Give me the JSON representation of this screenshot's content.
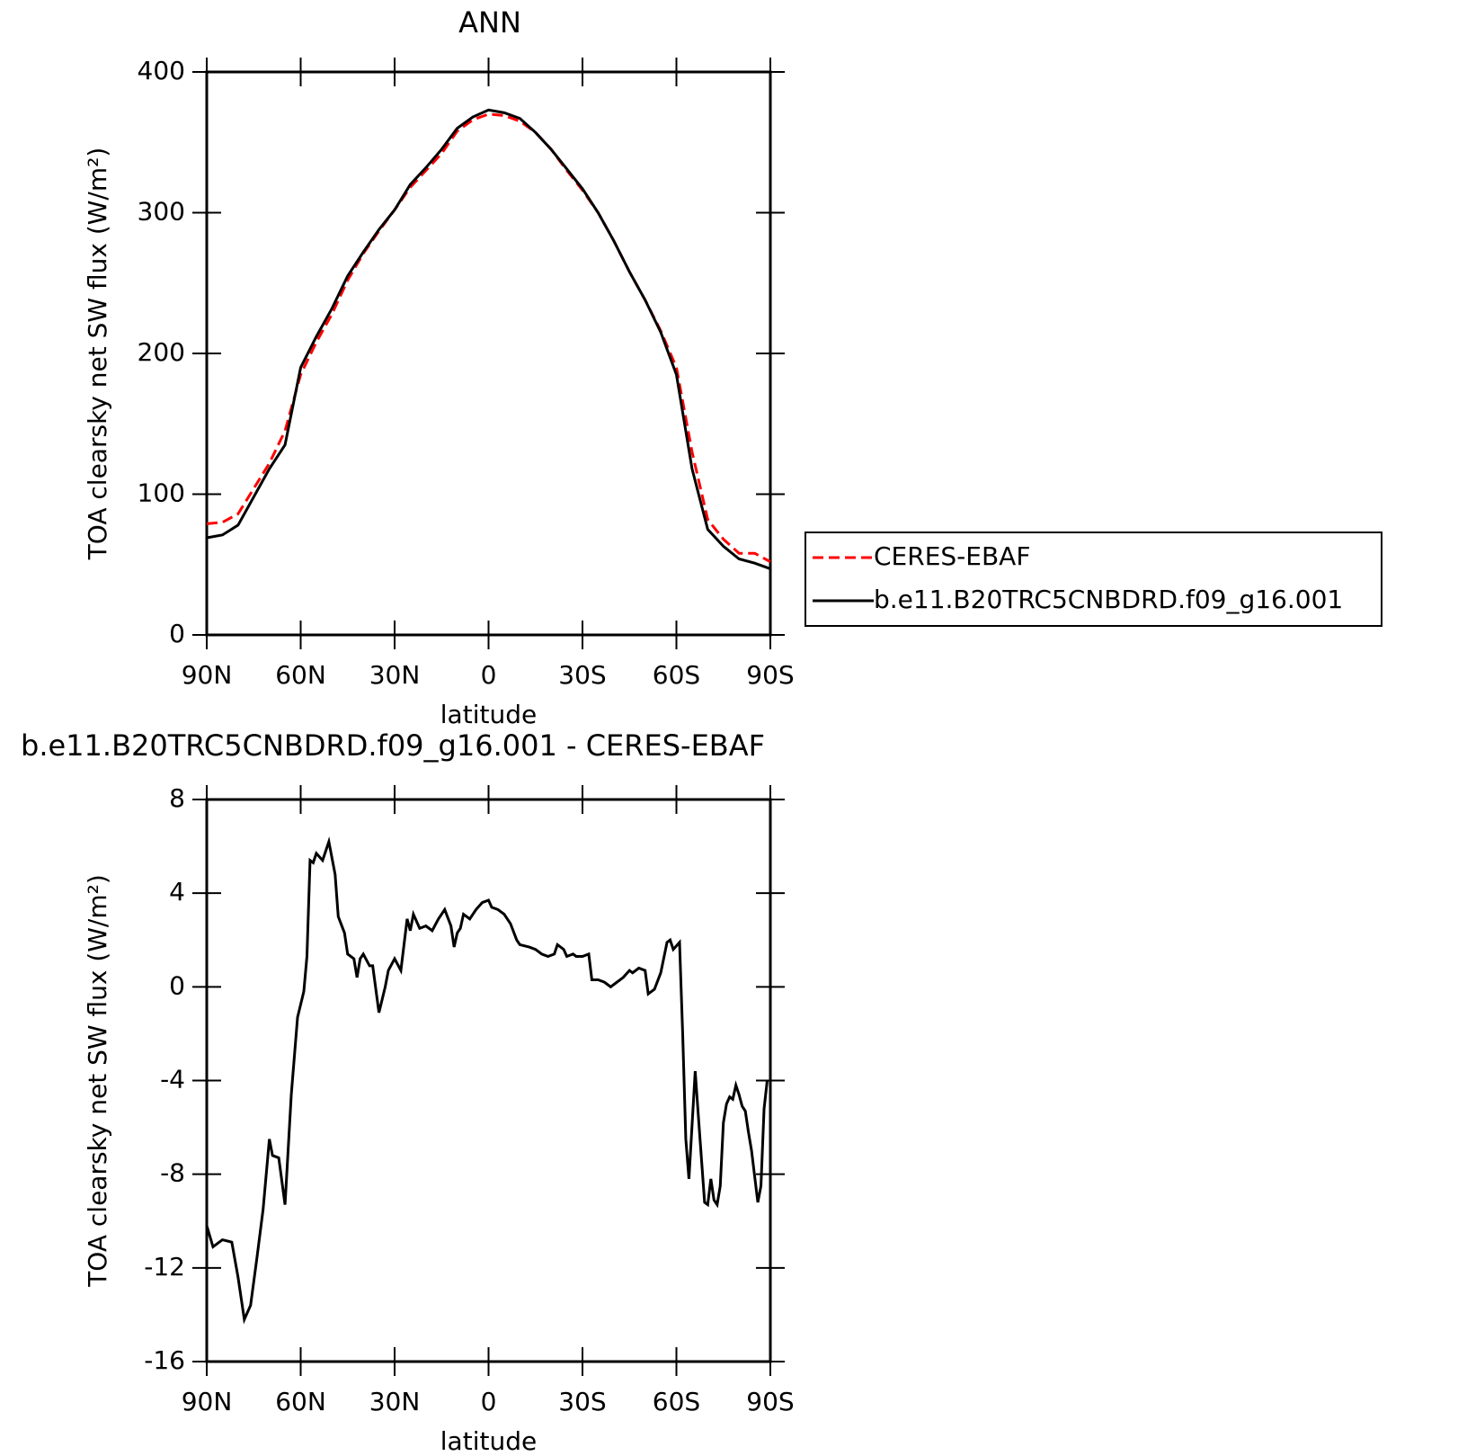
{
  "chart_data": [
    {
      "type": "line",
      "title": "ANN",
      "xlabel": "latitude",
      "ylabel": "TOA clearsky net SW flux (W/m²)",
      "x": [
        90,
        85,
        80,
        75,
        70,
        65,
        60,
        55,
        50,
        45,
        40,
        35,
        30,
        25,
        20,
        15,
        10,
        5,
        0,
        -5,
        -10,
        -15,
        -20,
        -25,
        -30,
        -35,
        -40,
        -45,
        -50,
        -55,
        -60,
        -65,
        -70,
        -75,
        -80,
        -85,
        -90
      ],
      "series": [
        {
          "name": "CERES-EBAF",
          "color": "#ff0000",
          "dash": true,
          "values": [
            79,
            80,
            86,
            104,
            122,
            145,
            185,
            208,
            228,
            252,
            271,
            287,
            302,
            318,
            330,
            342,
            358,
            366,
            370,
            369,
            365,
            357,
            345,
            330,
            316,
            300,
            280,
            258,
            238,
            216,
            190,
            130,
            82,
            68,
            58,
            58,
            52
          ]
        },
        {
          "name": "b.e11.B20TRC5CNBDRD.f09_g16.001",
          "color": "#000000",
          "dash": false,
          "values": [
            69,
            71,
            78,
            98,
            118,
            135,
            190,
            212,
            232,
            255,
            272,
            288,
            302,
            320,
            332,
            345,
            360,
            368,
            373,
            371,
            367,
            357,
            345,
            331,
            317,
            300,
            280,
            258,
            238,
            215,
            185,
            118,
            75,
            63,
            54,
            51,
            47
          ]
        }
      ],
      "xlim": [
        90,
        -90
      ],
      "xticks": [
        {
          "value": 90,
          "label": "90N"
        },
        {
          "value": 60,
          "label": "60N"
        },
        {
          "value": 30,
          "label": "30N"
        },
        0,
        {
          "value": -30,
          "label": "30S"
        },
        {
          "value": -60,
          "label": "60S"
        },
        {
          "value": -90,
          "label": "90S"
        }
      ],
      "ylim": [
        0,
        400
      ],
      "yticks": [
        0,
        100,
        200,
        300,
        400
      ],
      "legend": "outside-right"
    },
    {
      "type": "line",
      "title": "b.e11.B20TRC5CNBDRD.f09_g16.001 - CERES-EBAF",
      "xlabel": "latitude",
      "ylabel": "TOA clearsky net SW flux (W/m²)",
      "x": [
        90,
        88,
        85,
        82,
        80,
        78,
        76,
        74,
        72,
        70,
        69,
        67,
        65,
        63,
        61,
        59,
        58,
        57,
        56,
        55,
        53,
        51,
        49,
        48,
        46,
        45,
        43,
        42,
        41,
        40,
        38,
        37,
        35,
        33,
        32,
        30,
        28,
        26,
        25,
        24,
        22,
        20,
        18,
        16,
        14,
        12,
        11,
        10,
        9,
        8,
        6,
        4,
        2,
        0,
        -1,
        -3,
        -5,
        -7,
        -9,
        -10,
        -13,
        -15,
        -17,
        -19,
        -21,
        -22,
        -24,
        -25,
        -27,
        -28,
        -30,
        -32,
        -33,
        -35,
        -37,
        -39,
        -41,
        -43,
        -45,
        -46,
        -48,
        -50,
        -51,
        -53,
        -55,
        -57,
        -58,
        -59,
        -61,
        -62,
        -63,
        -64,
        -66,
        -67,
        -69,
        -70,
        -71,
        -72,
        -73,
        -74,
        -75,
        -76,
        -77,
        -78,
        -79,
        -80,
        -81,
        -82,
        -83,
        -84,
        -86,
        -87,
        -88,
        -89
      ],
      "series": [
        {
          "color": "#000000",
          "dash": false,
          "values": [
            -10.2,
            -11.1,
            -10.8,
            -10.9,
            -12.4,
            -14.2,
            -13.6,
            -11.6,
            -9.5,
            -6.5,
            -7.2,
            -7.3,
            -9.3,
            -4.6,
            -1.3,
            -0.2,
            1.3,
            5.4,
            5.3,
            5.7,
            5.4,
            6.2,
            4.8,
            3.0,
            2.3,
            1.4,
            1.2,
            0.4,
            1.2,
            1.4,
            0.9,
            0.9,
            -1.1,
            0,
            0.7,
            1.2,
            0.7,
            2.9,
            2.4,
            3.1,
            2.5,
            2.6,
            2.4,
            2.9,
            3.3,
            2.6,
            1.7,
            2.3,
            2.5,
            3.1,
            2.9,
            3.3,
            3.6,
            3.7,
            3.4,
            3.3,
            3.1,
            2.7,
            2.0,
            1.8,
            1.7,
            1.6,
            1.4,
            1.3,
            1.4,
            1.8,
            1.6,
            1.3,
            1.4,
            1.3,
            1.3,
            1.4,
            0.3,
            0.3,
            0.2,
            0.0,
            0.2,
            0.4,
            0.7,
            0.6,
            0.8,
            0.7,
            -0.3,
            -0.1,
            0.6,
            1.9,
            2.0,
            1.6,
            1.9,
            -2.0,
            -6.5,
            -8.2,
            -3.6,
            -5.5,
            -9.2,
            -9.3,
            -8.2,
            -9.1,
            -9.3,
            -8.5,
            -5.8,
            -5.0,
            -4.7,
            -4.8,
            -4.2,
            -4.6,
            -5.1,
            -5.3,
            -6.2,
            -7.0,
            -9.2,
            -8.5,
            -5.2,
            -4.0
          ]
        }
      ],
      "xlim": [
        90,
        -90
      ],
      "xticks": [
        {
          "value": 90,
          "label": "90N"
        },
        {
          "value": 60,
          "label": "60N"
        },
        {
          "value": 30,
          "label": "30N"
        },
        0,
        {
          "value": -30,
          "label": "30S"
        },
        {
          "value": -60,
          "label": "60S"
        },
        {
          "value": -90,
          "label": "90S"
        }
      ],
      "ylim": [
        -16,
        8
      ],
      "yticks": [
        -16,
        -12,
        -8,
        -4,
        0,
        4,
        8
      ]
    }
  ]
}
